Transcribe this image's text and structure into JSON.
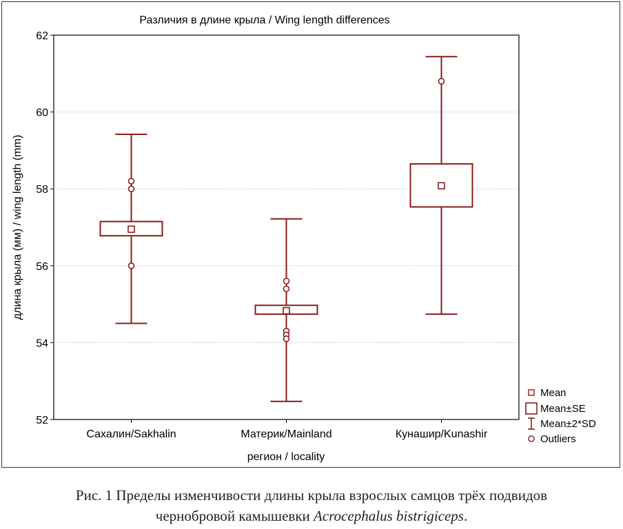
{
  "chart_data": {
    "type": "box",
    "title": "Различия в длине крыла / Wing length differences",
    "xlabel": "регион / locality",
    "ylabel": "длина крыла (мм) / wing length (mm)",
    "ylim": [
      52,
      62
    ],
    "yticks": [
      52,
      54,
      56,
      58,
      60,
      62
    ],
    "grid": true,
    "categories": [
      "Сахалин/Sakhalin",
      "Материк/Mainland",
      "Кунашир/Kunashir"
    ],
    "groups": [
      {
        "category": "Сахалин/Sakhalin",
        "mean": 56.95,
        "se_low": 56.78,
        "se_high": 57.15,
        "sd2_low": 54.5,
        "sd2_high": 59.42,
        "outliers": [
          58.2,
          58.0,
          56.0
        ]
      },
      {
        "category": "Материк/Mainland",
        "mean": 54.83,
        "se_low": 54.74,
        "se_high": 54.97,
        "sd2_low": 52.47,
        "sd2_high": 57.22,
        "outliers": [
          55.6,
          55.4,
          54.3,
          54.2,
          54.1
        ]
      },
      {
        "category": "Кунашир/Kunashir",
        "mean": 58.08,
        "se_low": 57.53,
        "se_high": 58.65,
        "sd2_low": 54.74,
        "sd2_high": 61.44,
        "outliers": [
          60.8
        ]
      }
    ],
    "legend": {
      "placement": "bottom-right",
      "items": [
        "Mean",
        "Mean±SE",
        "Mean±2*SD",
        "Outliers"
      ]
    },
    "color": "#8b1a1a"
  },
  "caption": {
    "line1": "Рис. 1 Пределы изменчивости длины крыла взрослых самцов трёх подвидов",
    "line2_prefix": "чернобровой камышевки ",
    "line2_species": "Acrocephalus bistrigiceps",
    "line2_suffix": "."
  }
}
